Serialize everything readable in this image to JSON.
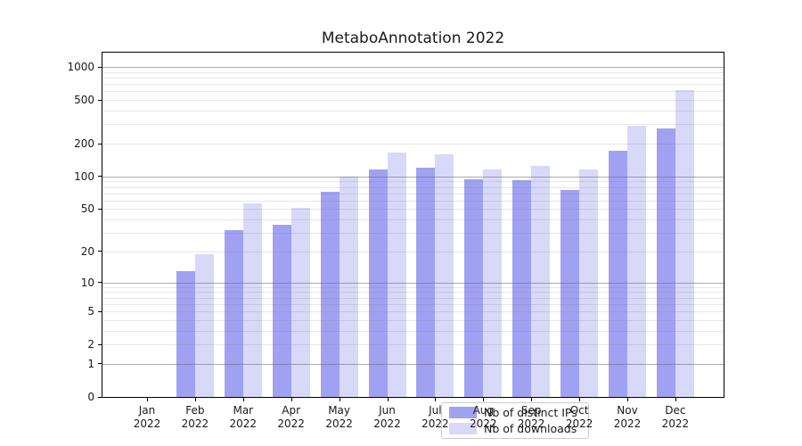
{
  "chart_data": {
    "type": "bar",
    "title": "MetaboAnnotation 2022",
    "year_label": "2022",
    "categories": [
      "Jan",
      "Feb",
      "Mar",
      "Apr",
      "May",
      "Jun",
      "Jul",
      "Aug",
      "Sep",
      "Oct",
      "Nov",
      "Dec"
    ],
    "series": [
      {
        "name": "Nb of distinct IPs",
        "color": "#a1a1f2",
        "values": [
          0,
          13,
          32,
          36,
          73,
          115,
          121,
          94,
          93,
          75,
          171,
          273
        ]
      },
      {
        "name": "Nb of downloads",
        "color": "#d8d8f9",
        "values": [
          0,
          19,
          57,
          51,
          100,
          165,
          159,
          117,
          124,
          116,
          289,
          614
        ]
      }
    ],
    "yscale": "log1p",
    "yticks": [
      0,
      1,
      2,
      5,
      10,
      20,
      50,
      100,
      200,
      500,
      1000
    ],
    "ylim": [
      0,
      1000
    ],
    "grid_major": [
      1,
      10,
      100,
      1000
    ],
    "grid": true,
    "legend_position": "lower center"
  }
}
